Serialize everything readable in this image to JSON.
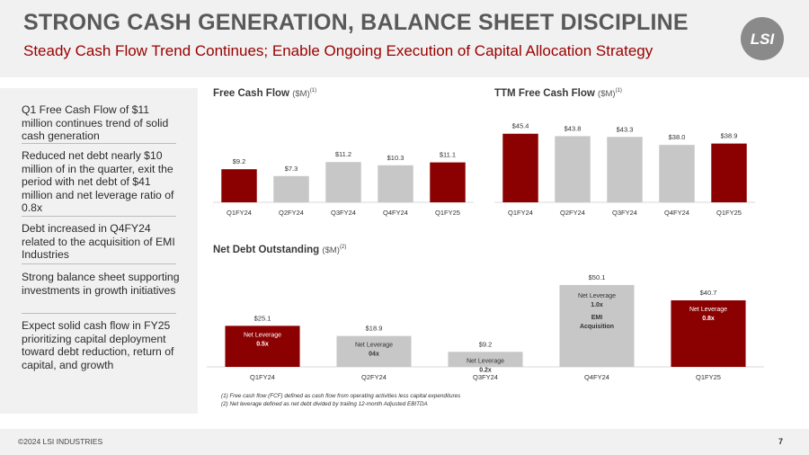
{
  "header": {
    "title": "STRONG CASH GENERATION, BALANCE SHEET DISCIPLINE",
    "subtitle": "Steady Cash Flow Trend Continues; Enable Ongoing Execution of Capital Allocation Strategy",
    "logo_icon": "lsi-logo-icon",
    "logo_text": "LSI"
  },
  "sidebar": {
    "items": [
      "Q1 Free Cash Flow of $11 million continues trend of solid cash generation",
      "Reduced net debt nearly $10 million of in the quarter, exit the period with net debt of $41 million and net leverage ratio of 0.8x",
      "Debt increased in Q4FY24 related to the acquisition of EMI Industries",
      "Strong balance sheet supporting investments in growth initiatives",
      "Expect solid cash flow in FY25 prioritizing capital deployment toward debt reduction, return of capital, and growth"
    ]
  },
  "colors": {
    "highlight": "#8b0000",
    "neutral": "#c7c7c7"
  },
  "charts": {
    "fcf": {
      "title": "Free Cash Flow",
      "unit": "($M)",
      "note": "(1)"
    },
    "ttm": {
      "title": "TTM Free Cash Flow",
      "unit": "($M)",
      "note": "(1)"
    },
    "debt": {
      "title": "Net Debt Outstanding",
      "unit": "($M)",
      "note": "(2)"
    }
  },
  "chart_data": [
    {
      "type": "bar",
      "title": "Free Cash Flow ($M)",
      "categories": [
        "Q1FY24",
        "Q2FY24",
        "Q3FY24",
        "Q4FY24",
        "Q1FY25"
      ],
      "values": [
        9.2,
        7.3,
        11.2,
        10.3,
        11.1
      ],
      "value_labels": [
        "$9.2",
        "$7.3",
        "$11.2",
        "$10.3",
        "$11.1"
      ],
      "highlight": [
        true,
        false,
        false,
        false,
        true
      ],
      "ylim": [
        0,
        12
      ]
    },
    {
      "type": "bar",
      "title": "TTM Free Cash Flow ($M)",
      "categories": [
        "Q1FY24",
        "Q2FY24",
        "Q3FY24",
        "Q4FY24",
        "Q1FY25"
      ],
      "values": [
        45.4,
        43.8,
        43.3,
        38.0,
        38.9
      ],
      "value_labels": [
        "$45.4",
        "$43.8",
        "$43.3",
        "$38.0",
        "$38.9"
      ],
      "highlight": [
        true,
        false,
        false,
        false,
        true
      ],
      "ylim": [
        0,
        50
      ]
    },
    {
      "type": "bar",
      "title": "Net Debt Outstanding ($M)",
      "categories": [
        "Q1FY24",
        "Q2FY24",
        "Q3FY24",
        "Q4FY24",
        "Q1FY25"
      ],
      "values": [
        25.1,
        18.9,
        9.2,
        50.1,
        40.7
      ],
      "value_labels": [
        "$25.1",
        "$18.9",
        "$9.2",
        "$50.1",
        "$40.7"
      ],
      "highlight": [
        true,
        false,
        false,
        false,
        true
      ],
      "annotations": [
        [
          "Net Leverage",
          "0.5x"
        ],
        [
          "Net Leverage",
          "04x"
        ],
        [
          "Net Leverage",
          "0.2x"
        ],
        [
          "Net Leverage",
          "1.0x",
          "EMI",
          "Acquisition"
        ],
        [
          "Net Leverage",
          "0.8x"
        ]
      ],
      "ylim": [
        0,
        55
      ]
    }
  ],
  "footnotes": [
    "(1)    Free cash flow (FCF) defined as cash flow from operating activities less capital expenditures",
    "(2)    Net leverage defined as net debt divided by trailing 12-month Adjusted EBITDA"
  ],
  "footer": {
    "copyright": "©2024 LSI INDUSTRIES",
    "page": "7"
  }
}
